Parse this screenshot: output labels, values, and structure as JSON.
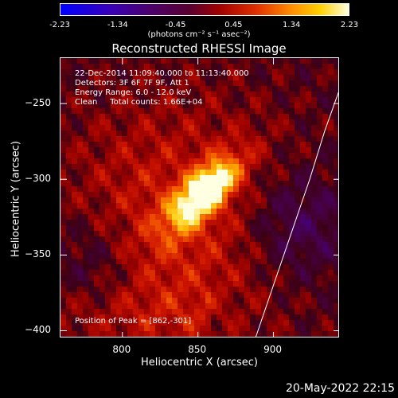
{
  "colorbar": {
    "ticks": [
      "-2.23",
      "-1.34",
      "-0.45",
      "0.45",
      "1.34",
      "2.23"
    ],
    "unit": "(photons cm⁻² s⁻¹ asec⁻²)"
  },
  "info": {
    "time_range": "22-Dec-2014 11:09:40.000 to 11:13:40.000",
    "detectors": "Detectors: 3F 6F 7F 9F, Att 1",
    "energy": "Energy Range: 6.0 - 12.0 keV",
    "clean": "Clean     Total counts: 1.66E+04",
    "peak": "Position of Peak = [862,-301]"
  },
  "timestamp": "20-May-2022 22:15",
  "chart_data": {
    "type": "heatmap",
    "title": "Reconstructed RHESSI Image",
    "xlabel": "Heliocentric X (arcsec)",
    "ylabel": "Heliocentric Y (arcsec)",
    "xlim": [
      759,
      944
    ],
    "ylim": [
      -405,
      -220
    ],
    "x_ticks": [
      800,
      850,
      900
    ],
    "y_ticks": [
      -250,
      -300,
      -350,
      -400
    ],
    "value_range": [
      -2.23,
      2.23
    ],
    "peak": {
      "x": 862,
      "y": -301,
      "value": 2.23
    },
    "limb_curve": [
      [
        888,
        -405
      ],
      [
        900,
        -370
      ],
      [
        912,
        -335
      ],
      [
        924,
        -300
      ],
      [
        934,
        -268
      ],
      [
        944,
        -240
      ]
    ]
  }
}
